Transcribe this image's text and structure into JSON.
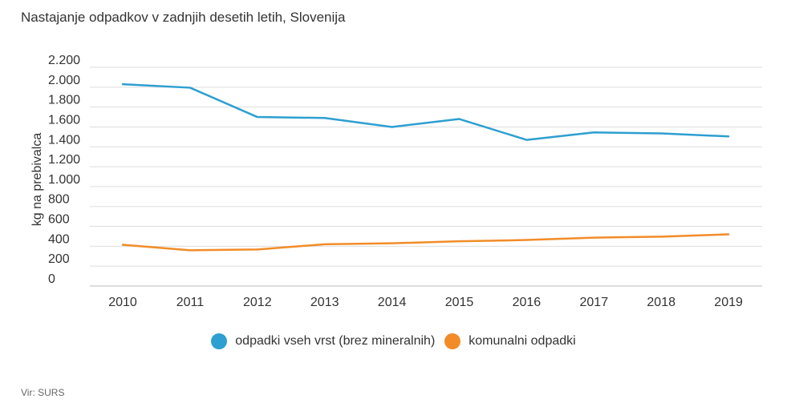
{
  "chart_data": {
    "type": "line",
    "title": "Nastajanje odpadkov v zadnjih desetih letih, Slovenija",
    "ylabel": "kg na prebivalca",
    "xlabel": "",
    "x": [
      "2010",
      "2011",
      "2012",
      "2013",
      "2014",
      "2015",
      "2016",
      "2017",
      "2018",
      "2019"
    ],
    "ylim": [
      0,
      2200
    ],
    "yticks": [
      0,
      200,
      400,
      600,
      800,
      1000,
      1200,
      1400,
      1600,
      1800,
      2000,
      2200
    ],
    "ytick_labels": [
      "0",
      "200",
      "400",
      "600",
      "800",
      "1.000",
      "1.200",
      "1.400",
      "1.600",
      "1.800",
      "2.000",
      "2.200"
    ],
    "grid": true,
    "legend_position": "bottom",
    "series": [
      {
        "name": "odpadki vseh vrst (brez mineralnih)",
        "color": "#2d9fd0",
        "values": [
          2030,
          1995,
          1700,
          1690,
          1600,
          1680,
          1470,
          1545,
          1535,
          1505
        ]
      },
      {
        "name": "komunalni odpadki",
        "color": "#f28c28",
        "values": [
          415,
          360,
          368,
          420,
          430,
          450,
          463,
          487,
          497,
          520
        ]
      }
    ]
  },
  "source": "Vir: SURS"
}
